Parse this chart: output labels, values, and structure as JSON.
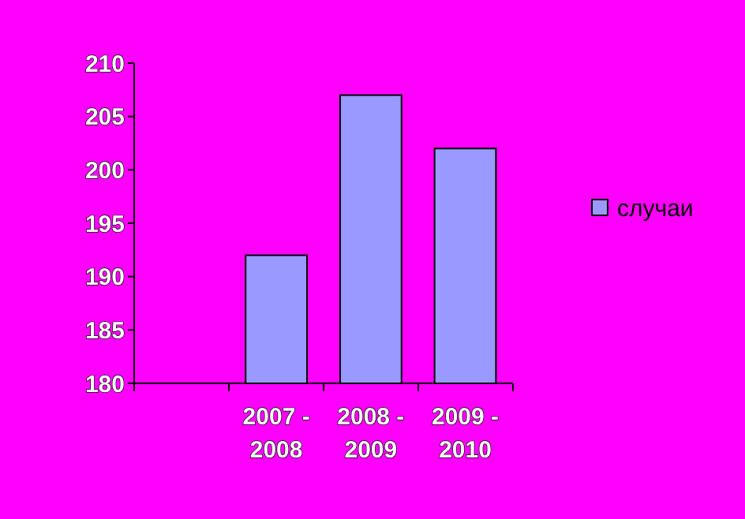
{
  "chart_data": {
    "type": "bar",
    "categories": [
      null,
      "2007 - 2008",
      "2008 - 2009",
      "2009 - 2010"
    ],
    "series": [
      {
        "name": "случаи",
        "color": "#9999ff",
        "values": [
          null,
          192,
          207,
          202
        ]
      }
    ],
    "ylim": [
      180,
      210
    ],
    "yticks": [
      180,
      185,
      190,
      195,
      200,
      205,
      210
    ],
    "grid": false,
    "legend": "right"
  }
}
